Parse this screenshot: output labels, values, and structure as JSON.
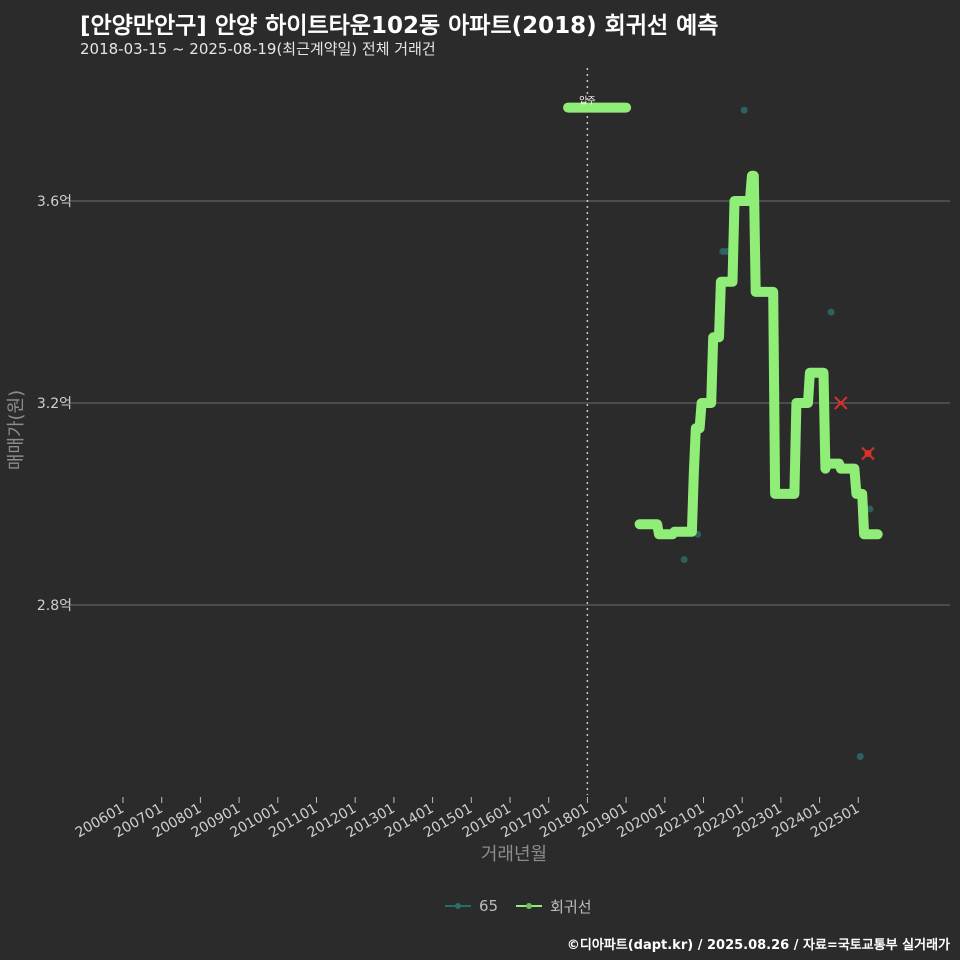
{
  "title": "[안양만안구] 안양 하이트타운102동 아파트(2018) 회귀선 예측",
  "subtitle": "2018-03-15 ~ 2025-08-19(최근계약일) 전체 거래건",
  "caption": "©디아파트(dapt.kr) / 2025.08.26 / 자료=국토교통부 실거래가",
  "legend": [
    {
      "label": "65",
      "color": "#1f6f6f"
    },
    {
      "label": "회귀선",
      "color": "#90ee78"
    }
  ],
  "colors": {
    "background": "#2b2b2b",
    "grid": "#6e6e6e",
    "line": "#90ee78",
    "point": "#2e6b66",
    "marker": "#d9302e"
  },
  "chart_data": {
    "type": "line",
    "xlabel": "거래년월",
    "ylabel": "매매가(원)",
    "x_tick_labels": [
      "200601",
      "200701",
      "200801",
      "200901",
      "201001",
      "201101",
      "201201",
      "201301",
      "201401",
      "201501",
      "201601",
      "201701",
      "201801",
      "201901",
      "202001",
      "202101",
      "202201",
      "202301",
      "202401",
      "202501"
    ],
    "y_ticks": [
      {
        "value": 2.8,
        "label": "2.8억"
      },
      {
        "value": 3.2,
        "label": "3.2억"
      },
      {
        "value": 3.6,
        "label": "3.6억"
      }
    ],
    "xlim": [
      2005.0,
      2027.0
    ],
    "ylim": [
      2.43,
      3.8
    ],
    "vline": {
      "x": 2018.0,
      "label": "입주"
    },
    "label_bar": {
      "x0": 2017.5,
      "x1": 2019.0,
      "y": 3.785
    },
    "series": [
      {
        "name": "회귀선",
        "points": [
          [
            2019.35,
            2.96
          ],
          [
            2019.8,
            2.96
          ],
          [
            2019.85,
            2.94
          ],
          [
            2020.2,
            2.94
          ],
          [
            2020.25,
            2.945
          ],
          [
            2020.7,
            2.945
          ],
          [
            2020.75,
            3.06
          ],
          [
            2020.8,
            3.15
          ],
          [
            2020.9,
            3.15
          ],
          [
            2020.95,
            3.2
          ],
          [
            2021.2,
            3.2
          ],
          [
            2021.25,
            3.33
          ],
          [
            2021.4,
            3.33
          ],
          [
            2021.45,
            3.44
          ],
          [
            2021.75,
            3.44
          ],
          [
            2021.8,
            3.6
          ],
          [
            2022.2,
            3.6
          ],
          [
            2022.25,
            3.65
          ],
          [
            2022.3,
            3.65
          ],
          [
            2022.35,
            3.42
          ],
          [
            2022.8,
            3.42
          ],
          [
            2022.85,
            3.02
          ],
          [
            2023.35,
            3.02
          ],
          [
            2023.4,
            3.2
          ],
          [
            2023.7,
            3.2
          ],
          [
            2023.75,
            3.26
          ],
          [
            2024.1,
            3.26
          ],
          [
            2024.15,
            3.07
          ],
          [
            2024.2,
            3.08
          ],
          [
            2024.5,
            3.08
          ],
          [
            2024.55,
            3.07
          ],
          [
            2024.9,
            3.07
          ],
          [
            2024.95,
            3.02
          ],
          [
            2025.1,
            3.02
          ],
          [
            2025.15,
            2.94
          ],
          [
            2025.5,
            2.94
          ]
        ]
      },
      {
        "name": "65",
        "points": [
          [
            2019.85,
            2.96
          ],
          [
            2020.5,
            2.89
          ],
          [
            2020.85,
            2.94
          ],
          [
            2021.5,
            3.5
          ],
          [
            2022.05,
            3.78
          ],
          [
            2024.3,
            3.38
          ],
          [
            2025.3,
            2.99
          ],
          [
            2025.05,
            2.5
          ],
          [
            2021.6,
            3.5
          ]
        ]
      }
    ],
    "markers": [
      [
        2024.55,
        3.2
      ],
      [
        2025.25,
        3.1
      ]
    ]
  }
}
